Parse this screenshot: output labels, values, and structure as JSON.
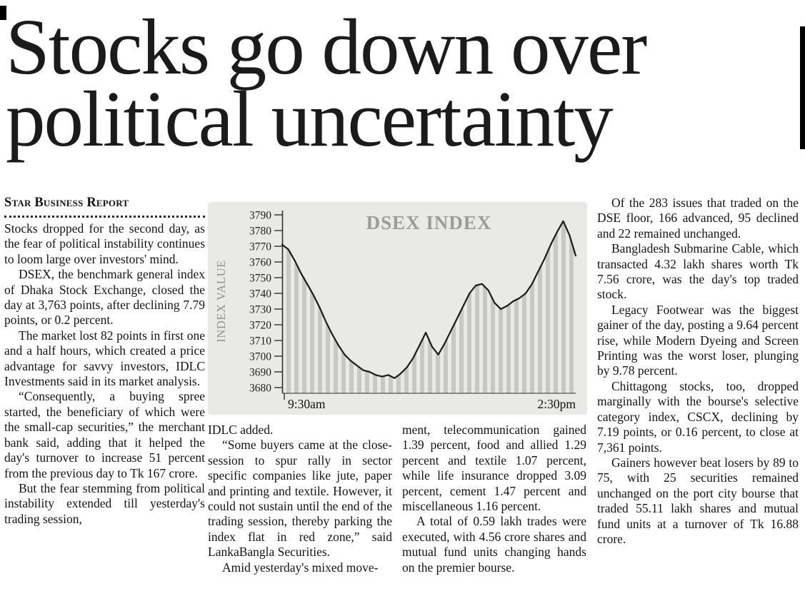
{
  "headline": {
    "line1": "Stocks go down over",
    "line2": "political uncertainty"
  },
  "article": {
    "byline": "Star Business Report",
    "col_left": [
      "Stocks dropped for the second day, as the fear of political instability continues to loom large over investors' mind.",
      "DSEX, the benchmark general index of Dhaka Stock Exchange, closed the day at 3,763 points, after declining 7.79 points, or 0.2 percent.",
      "The market lost 82 points in first one and a half hours, which created a price advantage for savvy investors, IDLC Investments said in its market analysis.",
      "“Consequently, a buying spree started, the beneficiary of which were the small-cap securities,” the merchant bank said, adding that it helped the day's turnover to increase 51 percent from the previous day to Tk 167 crore.",
      "But the fear stemming from political instability extended till yesterday's trading session,"
    ],
    "col_mid_a": [
      "IDLC added.",
      "“Some buyers came at the close-session to spur rally in sector specific companies like jute, paper and printing and textile. However, it could not sustain until the end of the trading session, thereby parking the index flat in red zone,” said LankaBangla Securities.",
      "Amid yesterday's mixed move-"
    ],
    "col_mid_b": [
      "ment, telecommunication gained 1.39 percent, food and allied 1.29 percent and textile 1.07 percent, while life insurance dropped 3.09 percent, cement 1.47 percent and miscellaneous 1.16 percent.",
      "A total of 0.59 lakh trades were executed, with 4.56 crore shares and mutual fund units changing hands on the premier bourse."
    ],
    "col_right": [
      "Of the 283 issues that traded on the DSE floor, 166 advanced, 95 declined and 22 remained unchanged.",
      "Bangladesh Submarine Cable, which transacted 4.32 lakh shares worth Tk 7.56 crore, was the day's top traded stock.",
      "Legacy Footwear was the biggest gainer of the day, posting a 9.64 percent rise, while Modern Dyeing and Screen Printing was the worst loser, plunging by 9.78 percent.",
      "Chittagong stocks, too, dropped marginally with the bourse's selective category index, CSCX, declining by 7.19 points, or 0.16 percent, to close at 7,361 points.",
      "Gainers however beat losers by 89 to 75, with 25 securities remained unchanged on the port city bourse that traded 55.11 lakh shares and mutual fund units at a turnover of Tk 16.88 crore."
    ]
  },
  "chart_data": {
    "type": "line",
    "title": "DSEX INDEX",
    "ylabel": "INDEX VALUE",
    "x_labels": [
      "9:30am",
      "2:30pm"
    ],
    "yticks": [
      3790,
      3780,
      3770,
      3760,
      3750,
      3740,
      3730,
      3720,
      3710,
      3700,
      3690,
      3680
    ],
    "ylim": [
      3680,
      3790
    ],
    "open": 3771,
    "close": 3763,
    "day_low": 3686,
    "day_high": 3786,
    "values": [
      3771,
      3768,
      3761,
      3753,
      3746,
      3739,
      3731,
      3722,
      3714,
      3707,
      3701,
      3697,
      3694,
      3691,
      3690,
      3688,
      3687,
      3688,
      3686,
      3689,
      3693,
      3699,
      3707,
      3715,
      3706,
      3701,
      3708,
      3716,
      3724,
      3732,
      3740,
      3745,
      3746,
      3742,
      3734,
      3730,
      3732,
      3735,
      3737,
      3740,
      3746,
      3754,
      3762,
      3771,
      3779,
      3786,
      3777,
      3764
    ],
    "colors": {
      "line": "#1a1a1a",
      "stripe": "#c7c7c5",
      "panel": "#e9e9e7",
      "title": "#9b9b9b",
      "axis": "#2f2f2f",
      "ylabel": "#8f8f8f",
      "tick_text": "#1e1e1e"
    },
    "legend": "none",
    "grid": false
  }
}
